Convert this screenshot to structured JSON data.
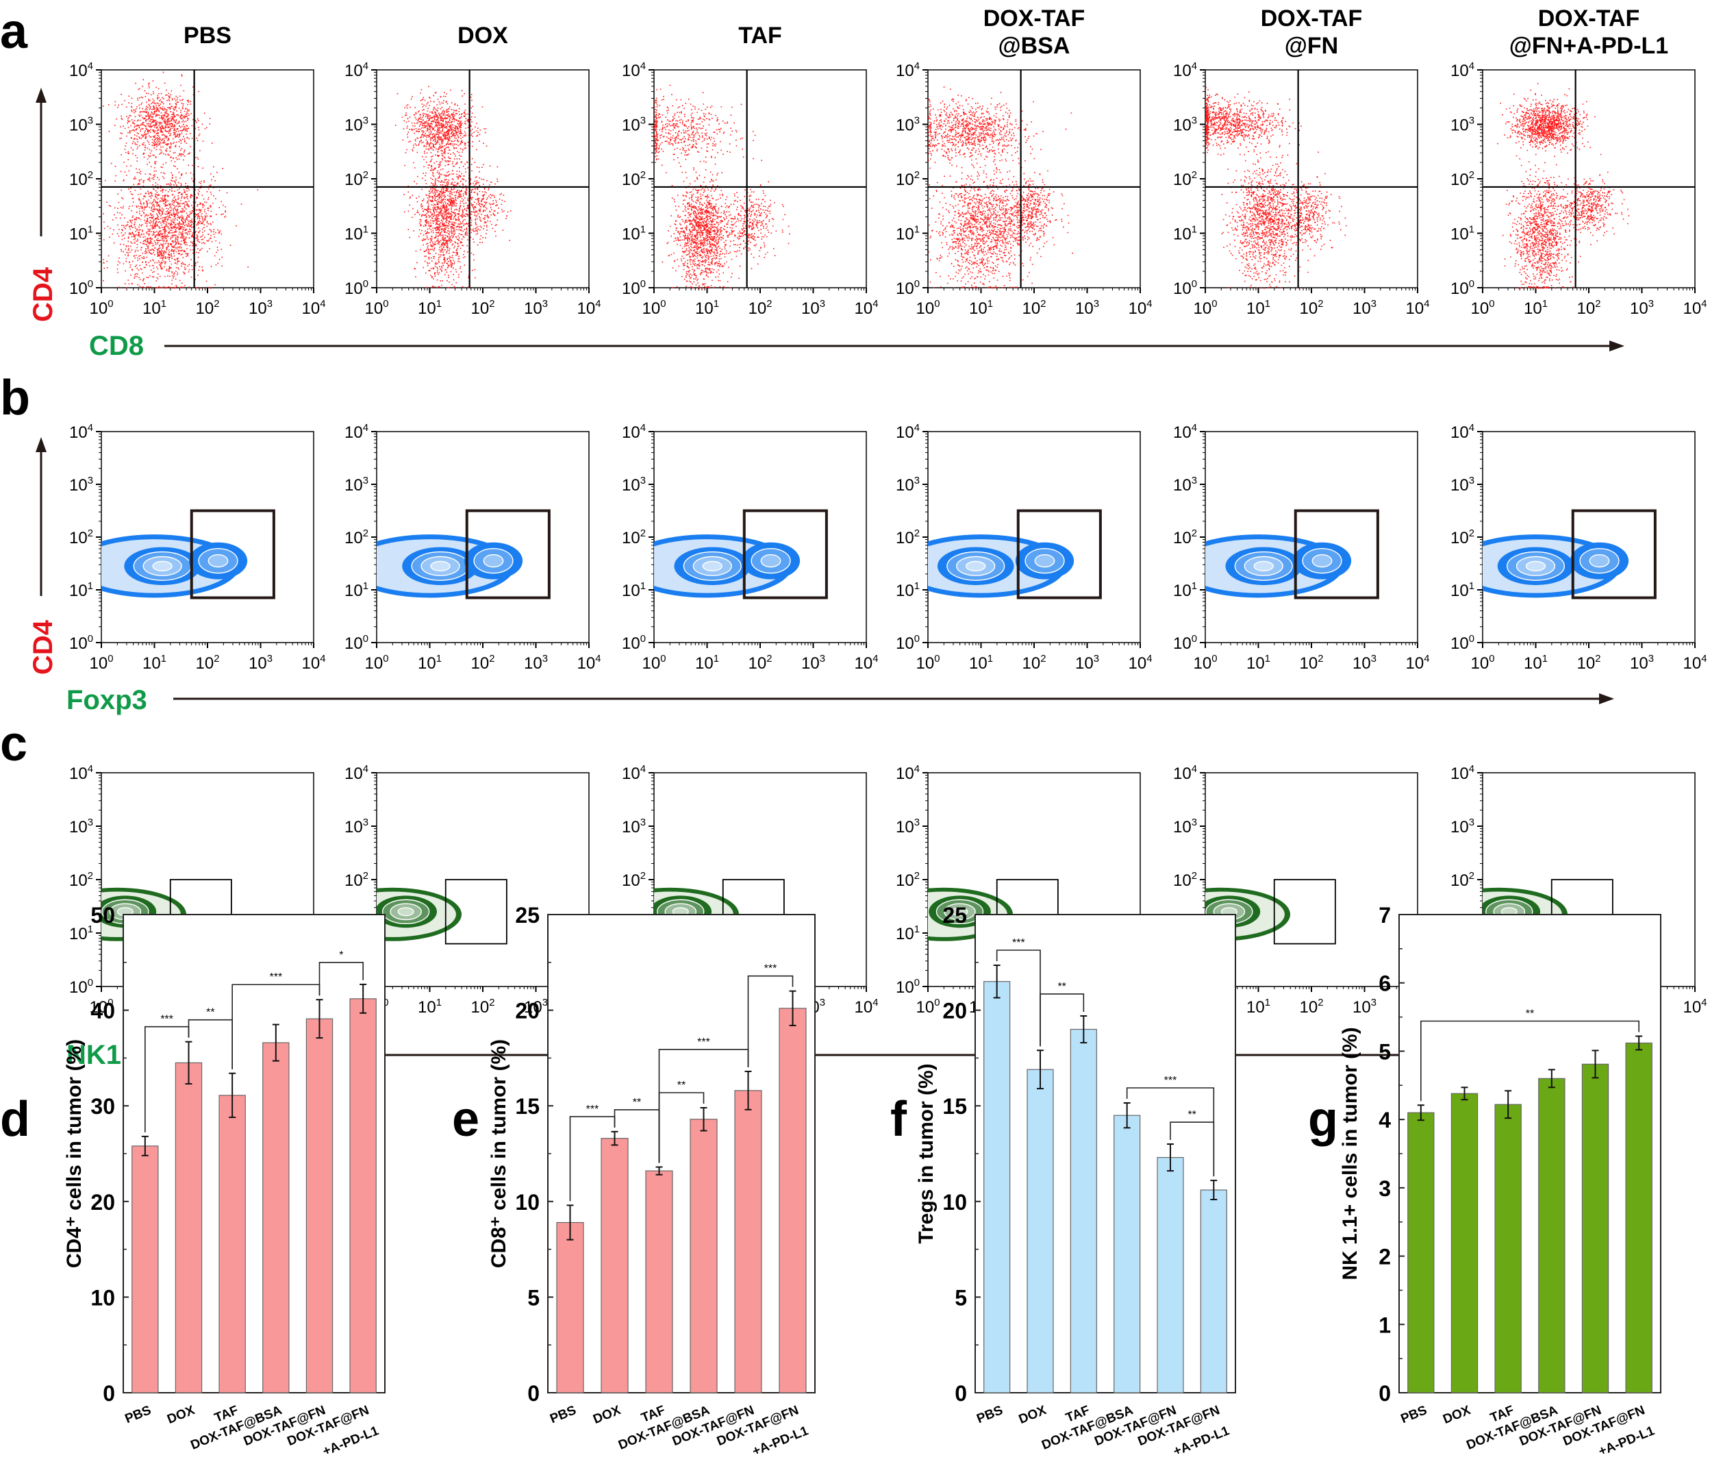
{
  "groups": [
    "PBS",
    "DOX",
    "TAF",
    "DOX-TAF@BSA",
    "DOX-TAF@FN",
    "DOX-TAF@FN+A-PD-L1"
  ],
  "column_titles": [
    [
      "PBS"
    ],
    [
      "DOX"
    ],
    [
      "TAF"
    ],
    [
      "DOX-TAF",
      "@BSA"
    ],
    [
      "DOX-TAF",
      "@FN"
    ],
    [
      "DOX-TAF",
      "@FN+A-PD-L1"
    ]
  ],
  "log_ticks": [
    "10^0",
    "10^1",
    "10^2",
    "10^3",
    "10^4"
  ],
  "panels": {
    "a": {
      "letter": "a",
      "ylabel": "CD4",
      "xlabel": "CD8",
      "ylabel_color": "#e5141c",
      "xlabel_color": "#0f9a48",
      "plot_type": "dot-plot-quadrant",
      "color": "#ff1a1a"
    },
    "b": {
      "letter": "b",
      "ylabel": "CD4",
      "xlabel": "Foxp3",
      "ylabel_color": "#e5141c",
      "xlabel_color": "#0f9a48",
      "plot_type": "contour-gate",
      "color": "#1a7ef0"
    },
    "c": {
      "letter": "c",
      "ylabel": "",
      "xlabel": "NK1.1",
      "xlabel_color": "#0f9a48",
      "plot_type": "contour-gate",
      "color": "#1f6b1f"
    }
  },
  "chart_data": [
    {
      "id": "d",
      "letter": "d",
      "type": "bar",
      "categories": [
        "PBS",
        "DOX",
        "TAF",
        "DOX-TAF@BSA",
        "DOX-TAF@FN",
        "DOX-TAF@FN\n+A-PD-L1"
      ],
      "values": [
        25.8,
        34.5,
        31.1,
        36.6,
        39.1,
        41.2
      ],
      "errors": [
        1.0,
        2.2,
        2.3,
        1.9,
        2.0,
        1.5
      ],
      "ylabel": "CD4⁺ cells in tumor (%)",
      "ylim": [
        0,
        50
      ],
      "yticks": [
        0,
        10,
        20,
        30,
        40,
        50
      ],
      "color": "#f99898",
      "significance": [
        {
          "from": 0,
          "to": 1,
          "label": "***"
        },
        {
          "from": 1,
          "to": 2,
          "label": "**"
        },
        {
          "from": 2,
          "to": 4,
          "label": "***"
        },
        {
          "from": 4,
          "to": 5,
          "label": "*"
        }
      ]
    },
    {
      "id": "e",
      "letter": "e",
      "type": "bar",
      "categories": [
        "PBS",
        "DOX",
        "TAF",
        "DOX-TAF@BSA",
        "DOX-TAF@FN",
        "DOX-TAF@FN\n+A-PD-L1"
      ],
      "values": [
        8.9,
        13.3,
        11.6,
        14.3,
        15.8,
        20.1
      ],
      "errors": [
        0.9,
        0.35,
        0.2,
        0.6,
        1.0,
        0.9
      ],
      "ylabel": "CD8⁺ cells in tumor (%)",
      "ylim": [
        0,
        25
      ],
      "yticks": [
        0,
        5,
        10,
        15,
        20,
        25
      ],
      "color": "#f99898",
      "significance": [
        {
          "from": 0,
          "to": 1,
          "label": "***"
        },
        {
          "from": 1,
          "to": 2,
          "label": "**"
        },
        {
          "from": 2,
          "to": 3,
          "label": "**"
        },
        {
          "from": 2,
          "to": 4,
          "label": "***"
        },
        {
          "from": 4,
          "to": 5,
          "label": "***"
        }
      ]
    },
    {
      "id": "f",
      "letter": "f",
      "type": "bar",
      "categories": [
        "PBS",
        "DOX",
        "TAF",
        "DOX-TAF@BSA",
        "DOX-TAF@FN",
        "DOX-TAF@FN\n+A-PD-L1"
      ],
      "values": [
        21.5,
        16.9,
        19.0,
        14.5,
        12.3,
        10.6
      ],
      "errors": [
        0.85,
        1.0,
        0.7,
        0.65,
        0.7,
        0.5
      ],
      "ylabel": "Tregs in tumor (%)",
      "ylim": [
        0,
        25
      ],
      "yticks": [
        0,
        5,
        10,
        15,
        20,
        25
      ],
      "color": "#b8e1fa",
      "significance": [
        {
          "from": 0,
          "to": 1,
          "label": "***"
        },
        {
          "from": 1,
          "to": 2,
          "label": "**"
        },
        {
          "from": 3,
          "to": 5,
          "label": "***"
        },
        {
          "from": 4,
          "to": 5,
          "label": "**"
        }
      ]
    },
    {
      "id": "g",
      "letter": "g",
      "type": "bar",
      "categories": [
        "PBS",
        "DOX",
        "TAF",
        "DOX-TAF@BSA",
        "DOX-TAF@FN",
        "DOX-TAF@FN\n+A-PD-L1"
      ],
      "values": [
        4.1,
        4.38,
        4.22,
        4.6,
        4.81,
        5.12
      ],
      "errors": [
        0.11,
        0.09,
        0.2,
        0.13,
        0.2,
        0.1
      ],
      "ylabel": "NK 1.1+ cells in tumor (%)",
      "ylim": [
        0,
        7
      ],
      "yticks": [
        0,
        1,
        2,
        3,
        4,
        5,
        6,
        7
      ],
      "color": "#6aa815",
      "significance": [
        {
          "from": 0,
          "to": 5,
          "label": "**"
        }
      ]
    }
  ]
}
